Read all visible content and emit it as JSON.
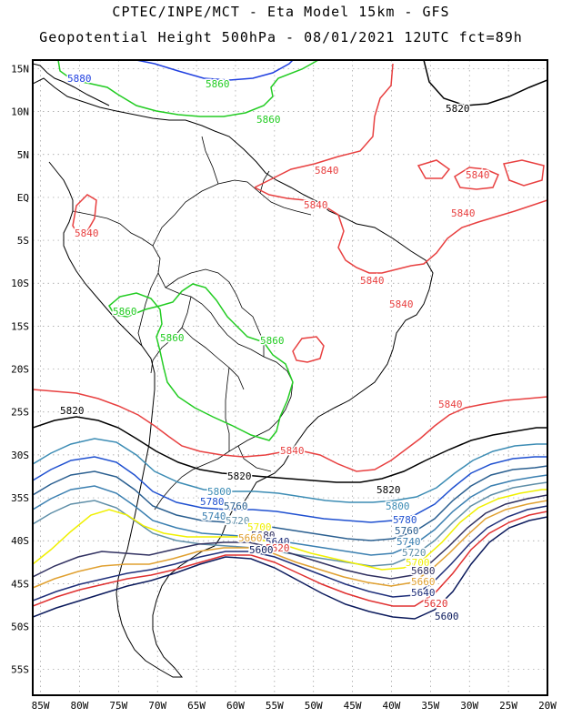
{
  "header": {
    "title_line1": "CPTEC/INPE/MCT  -  Eta Model 15km - GFS",
    "title_line2": "Geopotential Height 500hPa - 08/01/2021 12UTC fct=89h"
  },
  "axes": {
    "lat_labels": [
      "15N",
      "10N",
      "5N",
      "EQ",
      "5S",
      "10S",
      "15S",
      "20S",
      "25S",
      "30S",
      "35S",
      "40S",
      "45S",
      "50S",
      "55S"
    ],
    "lon_labels": [
      "85W",
      "80W",
      "75W",
      "70W",
      "65W",
      "60W",
      "55W",
      "50W",
      "45W",
      "40W",
      "35W",
      "30W",
      "25W",
      "20W"
    ],
    "lat_range": [
      -58,
      16
    ],
    "lon_range": [
      -86,
      -20
    ]
  },
  "contour_colors": {
    "5600": "#0b1a5c",
    "5620": "#e03030",
    "5640": "#1f2f7a",
    "5660": "#e0a030",
    "5680": "#303060",
    "5700": "#f0f000",
    "5720": "#5f8fa8",
    "5740": "#3a7fb0",
    "5760": "#2a5f90",
    "5780": "#1f50d0",
    "5800": "#3c8cb4",
    "5820": "#000000",
    "5840": "#e84040",
    "5860": "#22cc22",
    "5880": "#2040e0"
  },
  "contour_labels": [
    {
      "text": "5880",
      "level": "5880"
    },
    {
      "text": "5860",
      "level": "5860"
    },
    {
      "text": "5860",
      "level": "5860"
    },
    {
      "text": "5820",
      "level": "5820"
    },
    {
      "text": "5840",
      "level": "5840"
    },
    {
      "text": "5840",
      "level": "5840"
    },
    {
      "text": "5840",
      "level": "5840"
    },
    {
      "text": "5840",
      "level": "5840"
    },
    {
      "text": "5840",
      "level": "5840"
    },
    {
      "text": "5840",
      "level": "5840"
    },
    {
      "text": "5860",
      "level": "5860"
    },
    {
      "text": "5860",
      "level": "5860"
    },
    {
      "text": "5860",
      "level": "5860"
    },
    {
      "text": "5840",
      "level": "5840"
    },
    {
      "text": "5820",
      "level": "5820"
    },
    {
      "text": "5840",
      "level": "5840"
    },
    {
      "text": "5840",
      "level": "5840"
    },
    {
      "text": "5820",
      "level": "5820"
    },
    {
      "text": "5820",
      "level": "5820"
    },
    {
      "text": "5800",
      "level": "5800"
    },
    {
      "text": "5780",
      "level": "5780"
    },
    {
      "text": "5760",
      "level": "5760"
    },
    {
      "text": "5740",
      "level": "5740"
    },
    {
      "text": "5720",
      "level": "5720"
    },
    {
      "text": "5800",
      "level": "5800"
    },
    {
      "text": "5780",
      "level": "5780"
    },
    {
      "text": "5760",
      "level": "5760"
    },
    {
      "text": "5740",
      "level": "5740"
    },
    {
      "text": "5720",
      "level": "5720"
    },
    {
      "text": "5700",
      "level": "5700"
    },
    {
      "text": "5680",
      "level": "5680"
    },
    {
      "text": "5660",
      "level": "5660"
    },
    {
      "text": "5640",
      "level": "5640"
    },
    {
      "text": "5620",
      "level": "5620"
    },
    {
      "text": "5600",
      "level": "5600"
    },
    {
      "text": "5700",
      "level": "5700"
    },
    {
      "text": "5680",
      "level": "5680"
    },
    {
      "text": "5660",
      "level": "5660"
    },
    {
      "text": "5640",
      "level": "5640"
    },
    {
      "text": "5620",
      "level": "5620"
    },
    {
      "text": "5600",
      "level": "5600"
    }
  ]
}
